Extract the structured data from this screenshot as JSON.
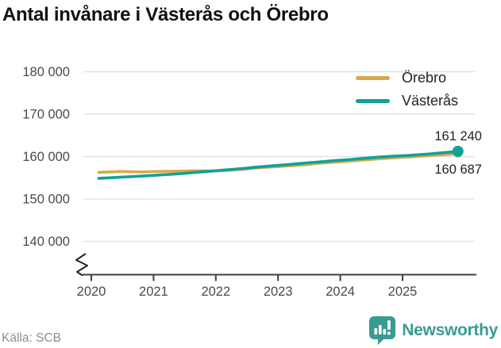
{
  "header": {
    "title": "Antal invånare i Västerås och Örebro"
  },
  "footer": {
    "source": "Källa: SCB",
    "brand_name": "Newsworthy"
  },
  "colors": {
    "orebro": "#D9A84E",
    "vasteras": "#10A296",
    "grid": "#E3E3E3",
    "axis": "#3F3F3F",
    "tick_label": "#4A4A4A",
    "end_label": "#222222",
    "title": "#111111",
    "source": "#8C8C8C",
    "brand": "#3A9B93"
  },
  "chart_data": {
    "type": "line",
    "title": "Antal invånare i Västerås och Örebro",
    "x_ticks": [
      2020,
      2021,
      2022,
      2023,
      2024,
      2025
    ],
    "y_ticks": [
      {
        "value": 140000,
        "label": "140 000"
      },
      {
        "value": 150000,
        "label": "150 000"
      },
      {
        "value": 160000,
        "label": "160 000"
      },
      {
        "value": 170000,
        "label": "170 000"
      },
      {
        "value": 180000,
        "label": "180 000"
      }
    ],
    "xlim": [
      2019.87,
      2026.19
    ],
    "ylim": [
      140000,
      180000
    ],
    "y_axis_break": true,
    "grid": "horizontal",
    "legend_position": "top-right",
    "series": [
      {
        "name": "Örebro",
        "color": "#D9A84E",
        "end_label": "160 687",
        "points": [
          [
            2020.12,
            156280
          ],
          [
            2020.29,
            156380
          ],
          [
            2020.46,
            156480
          ],
          [
            2020.62,
            156430
          ],
          [
            2020.79,
            156380
          ],
          [
            2020.96,
            156450
          ],
          [
            2021.12,
            156500
          ],
          [
            2021.29,
            156550
          ],
          [
            2021.46,
            156580
          ],
          [
            2021.62,
            156610
          ],
          [
            2021.79,
            156650
          ],
          [
            2021.96,
            156600
          ],
          [
            2022.12,
            156700
          ],
          [
            2022.29,
            156850
          ],
          [
            2022.46,
            157050
          ],
          [
            2022.62,
            157280
          ],
          [
            2022.79,
            157450
          ],
          [
            2022.96,
            157600
          ],
          [
            2023.12,
            157750
          ],
          [
            2023.29,
            157900
          ],
          [
            2023.46,
            158100
          ],
          [
            2023.62,
            158380
          ],
          [
            2023.79,
            158560
          ],
          [
            2023.96,
            158720
          ],
          [
            2024.12,
            158900
          ],
          [
            2024.29,
            159100
          ],
          [
            2024.46,
            159290
          ],
          [
            2024.62,
            159480
          ],
          [
            2024.79,
            159650
          ],
          [
            2024.96,
            159790
          ],
          [
            2025.12,
            159920
          ],
          [
            2025.29,
            160080
          ],
          [
            2025.46,
            160250
          ],
          [
            2025.62,
            160420
          ],
          [
            2025.79,
            160560
          ],
          [
            2025.89,
            160687
          ]
        ]
      },
      {
        "name": "Västerås",
        "color": "#10A296",
        "end_label": "161 240",
        "points": [
          [
            2020.12,
            154860
          ],
          [
            2020.29,
            154990
          ],
          [
            2020.46,
            155120
          ],
          [
            2020.62,
            155250
          ],
          [
            2020.79,
            155390
          ],
          [
            2020.96,
            155540
          ],
          [
            2021.12,
            155680
          ],
          [
            2021.29,
            155830
          ],
          [
            2021.46,
            156000
          ],
          [
            2021.62,
            156200
          ],
          [
            2021.79,
            156400
          ],
          [
            2021.96,
            156600
          ],
          [
            2022.12,
            156800
          ],
          [
            2022.29,
            157000
          ],
          [
            2022.46,
            157220
          ],
          [
            2022.62,
            157450
          ],
          [
            2022.79,
            157680
          ],
          [
            2022.96,
            157890
          ],
          [
            2023.12,
            158060
          ],
          [
            2023.29,
            158280
          ],
          [
            2023.46,
            158500
          ],
          [
            2023.62,
            158700
          ],
          [
            2023.79,
            158900
          ],
          [
            2023.96,
            159100
          ],
          [
            2024.12,
            159260
          ],
          [
            2024.29,
            159470
          ],
          [
            2024.46,
            159680
          ],
          [
            2024.62,
            159870
          ],
          [
            2024.79,
            160030
          ],
          [
            2024.96,
            160160
          ],
          [
            2025.12,
            160300
          ],
          [
            2025.29,
            160470
          ],
          [
            2025.46,
            160660
          ],
          [
            2025.62,
            160870
          ],
          [
            2025.79,
            161080
          ],
          [
            2025.89,
            161240
          ]
        ]
      }
    ]
  }
}
